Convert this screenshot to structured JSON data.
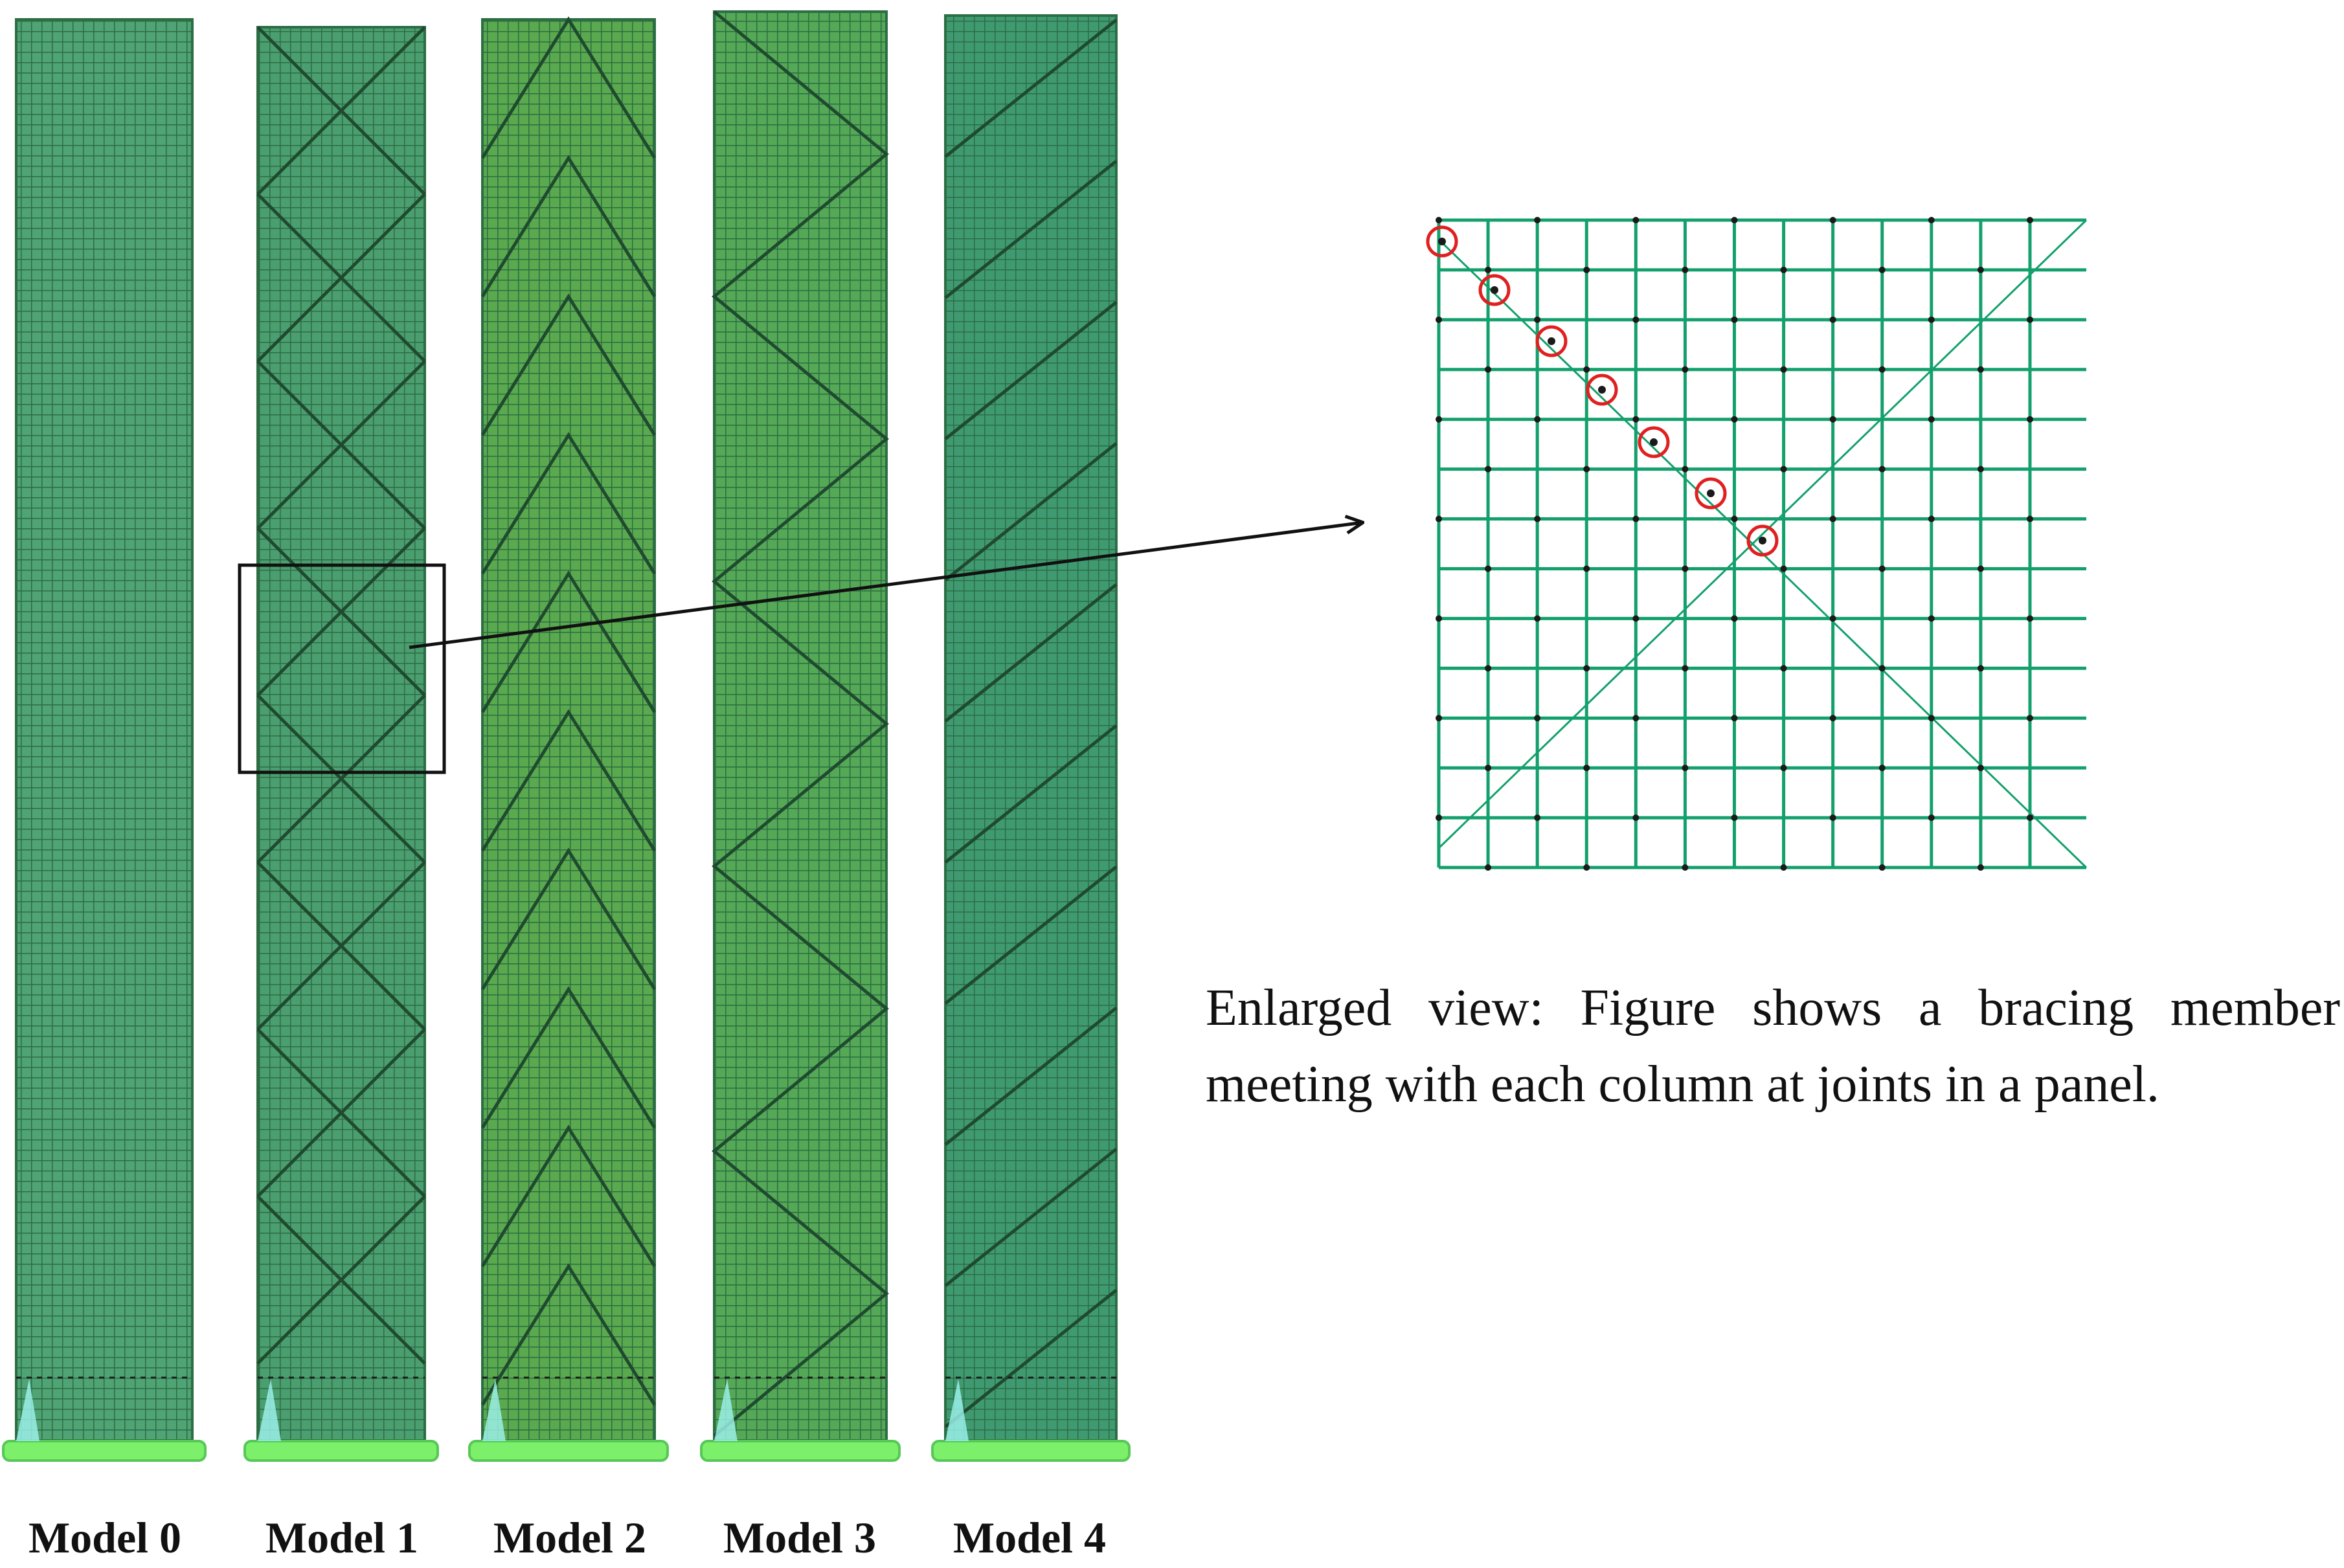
{
  "models": [
    {
      "label": "Model 0",
      "bracing": "none",
      "fill": "#4fa374"
    },
    {
      "label": "Model 1",
      "bracing": "x-bracing",
      "fill": "#4b9e70"
    },
    {
      "label": "Model 2",
      "bracing": "inverted-v-bracing",
      "fill": "#5aa94e"
    },
    {
      "label": "Model 3",
      "bracing": "zigzag-bracing",
      "fill": "#54a856"
    },
    {
      "label": "Model 4",
      "bracing": "single-diagonal-bracing",
      "fill": "#3f9a72"
    }
  ],
  "enlarged_view": {
    "caption": "Enlarged view: Figure shows a bracing member meeting with each column at joints in a panel.",
    "grid_color": "#13a06c",
    "joint_marker_color": "#e02020"
  },
  "colors": {
    "grid_line": "#2c6d43",
    "bracing_line": "#1f4a2f",
    "base_support": "#7df06b"
  }
}
